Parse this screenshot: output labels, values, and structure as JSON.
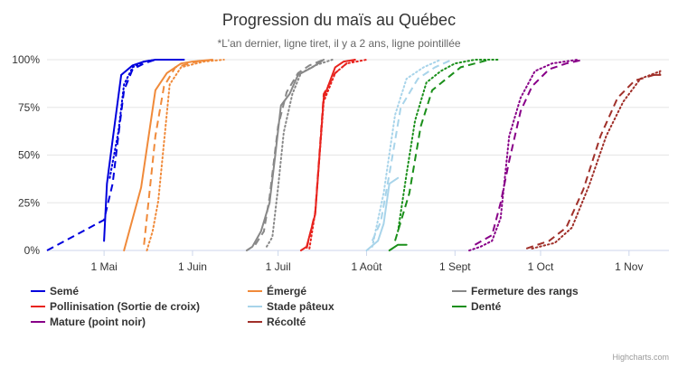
{
  "chart_data": {
    "type": "line",
    "title": "Progression du maïs au Québec",
    "subtitle": "*L'an dernier, ligne tiret, il y a 2 ans, ligne pointillée",
    "credit": "Highcharts.com",
    "x_domain_days": [
      0,
      218
    ],
    "x_ticks": [
      {
        "label": "1 Mai",
        "day": 20
      },
      {
        "label": "1 Juin",
        "day": 51
      },
      {
        "label": "1 Juil",
        "day": 81
      },
      {
        "label": "1 Août",
        "day": 112
      },
      {
        "label": "1 Sept",
        "day": 143
      },
      {
        "label": "1 Oct",
        "day": 173
      },
      {
        "label": "1 Nov",
        "day": 204
      }
    ],
    "y_ticks": [
      {
        "label": "0%",
        "value": 0
      },
      {
        "label": "25%",
        "value": 25
      },
      {
        "label": "50%",
        "value": 50
      },
      {
        "label": "75%",
        "value": 75
      },
      {
        "label": "100%",
        "value": 100
      }
    ],
    "ylim": [
      0,
      100
    ],
    "grid": "horizontal",
    "legend_position": "bottom",
    "series": [
      {
        "name": "Semé",
        "color": "#0000dd",
        "current": [
          [
            20,
            5
          ],
          [
            21,
            35
          ],
          [
            23,
            58
          ],
          [
            26,
            92
          ],
          [
            30,
            97
          ],
          [
            34,
            99
          ],
          [
            38,
            100
          ],
          [
            48,
            100
          ]
        ],
        "last_year": [
          [
            0,
            0
          ],
          [
            20,
            16
          ],
          [
            23,
            35
          ],
          [
            25,
            60
          ],
          [
            27,
            84
          ],
          [
            30,
            95
          ],
          [
            34,
            98
          ],
          [
            38,
            100
          ]
        ],
        "two_years": [
          [
            22,
            38
          ],
          [
            25,
            62
          ],
          [
            27,
            87
          ],
          [
            30,
            96
          ],
          [
            34,
            99
          ],
          [
            38,
            100
          ]
        ]
      },
      {
        "name": "Émergé",
        "color": "#f08a3a",
        "current": [
          [
            27,
            0
          ],
          [
            33,
            33
          ],
          [
            38,
            84
          ],
          [
            42,
            93
          ],
          [
            47,
            98
          ],
          [
            51,
            99
          ],
          [
            58,
            100
          ]
        ],
        "last_year": [
          [
            34,
            3
          ],
          [
            38,
            60
          ],
          [
            41,
            86
          ],
          [
            45,
            96
          ],
          [
            50,
            98
          ],
          [
            55,
            100
          ]
        ],
        "two_years": [
          [
            35,
            0
          ],
          [
            37,
            10
          ],
          [
            39,
            26
          ],
          [
            43,
            87
          ],
          [
            47,
            96
          ],
          [
            55,
            99
          ],
          [
            62,
            100
          ]
        ]
      },
      {
        "name": "Fermeture des rangs",
        "color": "#888888",
        "current": [
          [
            70,
            0
          ],
          [
            72,
            2
          ],
          [
            75,
            10
          ],
          [
            78,
            25
          ],
          [
            80,
            50
          ],
          [
            82,
            76
          ],
          [
            85,
            82
          ],
          [
            88,
            92
          ],
          [
            93,
            96
          ],
          [
            97,
            100
          ]
        ],
        "last_year": [
          [
            73,
            3
          ],
          [
            76,
            10
          ],
          [
            78,
            28
          ],
          [
            81,
            65
          ],
          [
            84,
            83
          ],
          [
            88,
            93
          ],
          [
            92,
            97
          ],
          [
            97,
            100
          ]
        ],
        "two_years": [
          [
            77,
            2
          ],
          [
            79,
            7
          ],
          [
            81,
            33
          ],
          [
            83,
            62
          ],
          [
            86,
            82
          ],
          [
            89,
            93
          ],
          [
            94,
            97
          ],
          [
            100,
            100
          ]
        ]
      },
      {
        "name": "Pollinisation (Sortie de croix)",
        "color": "#e8231e",
        "current": [
          [
            89,
            0
          ],
          [
            91,
            2
          ],
          [
            94,
            19
          ],
          [
            97,
            80
          ],
          [
            101,
            96
          ],
          [
            104,
            99
          ],
          [
            108,
            100
          ]
        ],
        "last_year": [
          [
            91,
            1
          ],
          [
            94,
            20
          ],
          [
            97,
            82
          ],
          [
            101,
            93
          ],
          [
            105,
            98
          ],
          [
            108,
            100
          ]
        ],
        "two_years": [
          [
            92,
            1
          ],
          [
            94,
            20
          ],
          [
            97,
            78
          ],
          [
            101,
            93
          ],
          [
            105,
            98
          ],
          [
            112,
            100
          ]
        ]
      },
      {
        "name": "Stade pâteux",
        "color": "#a8d4ea",
        "current": [
          [
            112,
            0
          ],
          [
            116,
            5
          ],
          [
            118,
            14
          ],
          [
            120,
            35
          ],
          [
            123,
            38
          ]
        ],
        "last_year": [
          [
            114,
            5
          ],
          [
            117,
            15
          ],
          [
            120,
            40
          ],
          [
            124,
            75
          ],
          [
            130,
            90
          ],
          [
            136,
            96
          ],
          [
            142,
            100
          ]
        ],
        "two_years": [
          [
            114,
            2
          ],
          [
            118,
            30
          ],
          [
            122,
            71
          ],
          [
            126,
            90
          ],
          [
            132,
            96
          ],
          [
            138,
            100
          ]
        ]
      },
      {
        "name": "Denté",
        "color": "#1a8f1a",
        "current": [
          [
            120,
            0
          ],
          [
            123,
            3
          ],
          [
            126,
            3
          ]
        ],
        "last_year": [
          [
            122,
            5
          ],
          [
            127,
            30
          ],
          [
            131,
            65
          ],
          [
            135,
            84
          ],
          [
            140,
            90
          ],
          [
            145,
            96
          ],
          [
            150,
            98
          ],
          [
            155,
            100
          ]
        ],
        "two_years": [
          [
            123,
            10
          ],
          [
            126,
            40
          ],
          [
            129,
            68
          ],
          [
            133,
            88
          ],
          [
            138,
            94
          ],
          [
            143,
            98
          ],
          [
            150,
            100
          ],
          [
            158,
            100
          ]
        ]
      },
      {
        "name": "Mature (point noir)",
        "color": "#880088",
        "current": [],
        "last_year": [
          [
            150,
            3
          ],
          [
            156,
            8
          ],
          [
            159,
            25
          ],
          [
            162,
            47
          ],
          [
            166,
            73
          ],
          [
            170,
            86
          ],
          [
            176,
            95
          ],
          [
            182,
            98
          ],
          [
            188,
            100
          ]
        ],
        "two_years": [
          [
            148,
            0
          ],
          [
            152,
            2
          ],
          [
            156,
            5
          ],
          [
            159,
            17
          ],
          [
            162,
            60
          ],
          [
            166,
            80
          ],
          [
            171,
            94
          ],
          [
            177,
            98
          ],
          [
            186,
            100
          ]
        ]
      },
      {
        "name": "Récolté",
        "color": "#a0302a",
        "current": [
          [
            212,
            92
          ],
          [
            215,
            92
          ]
        ],
        "last_year": [
          [
            168,
            1
          ],
          [
            176,
            5
          ],
          [
            182,
            12
          ],
          [
            188,
            32
          ],
          [
            194,
            60
          ],
          [
            200,
            80
          ],
          [
            206,
            89
          ],
          [
            215,
            93
          ]
        ],
        "two_years": [
          [
            170,
            1
          ],
          [
            178,
            4
          ],
          [
            184,
            12
          ],
          [
            190,
            34
          ],
          [
            196,
            60
          ],
          [
            202,
            78
          ],
          [
            208,
            90
          ],
          [
            215,
            94
          ]
        ]
      }
    ]
  }
}
